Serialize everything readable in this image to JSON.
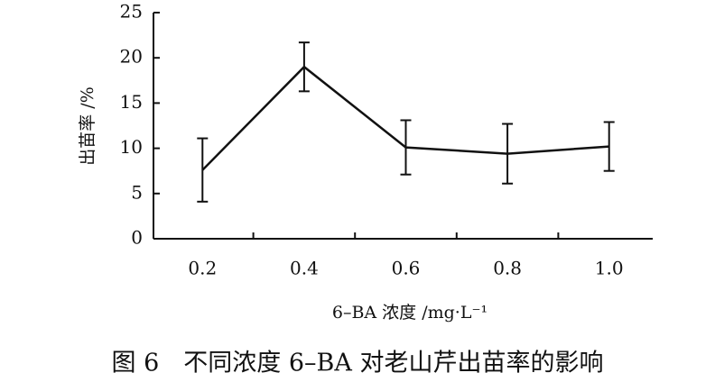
{
  "chart_data": {
    "type": "line",
    "title": "图 6　不同浓度 6–BA 对老山芹出苗率的影响",
    "x_label": "6–BA 浓度 /mg·L⁻¹",
    "y_label": "出苗率 /%",
    "categories": [
      "0.2",
      "0.4",
      "0.6",
      "0.8",
      "1.0"
    ],
    "values": [
      7.6,
      19.0,
      10.1,
      9.4,
      10.2
    ],
    "errors": [
      3.5,
      2.7,
      3.0,
      3.3,
      2.7
    ],
    "color": "#111111",
    "ylim": [
      0,
      25
    ],
    "yticks": [
      0,
      5,
      10,
      15,
      20,
      25
    ]
  }
}
